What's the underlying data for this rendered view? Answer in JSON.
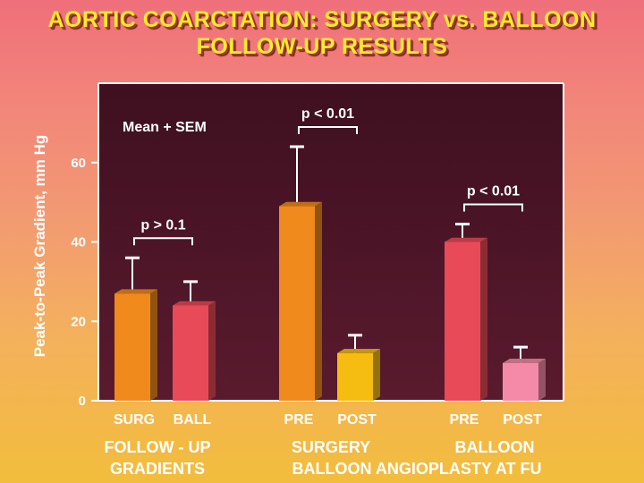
{
  "title_line1": "AORTIC COARCTATION: SURGERY vs. BALLOON",
  "title_line2": "FOLLOW-UP RESULTS",
  "chart_data": {
    "type": "bar",
    "ylabel": "Peak-to-Peak Gradient, mm Hg",
    "ylim": [
      0,
      80
    ],
    "yticks": [
      0,
      20,
      40,
      60
    ],
    "legend_note": "Mean + SEM",
    "bars": [
      {
        "label": "SURG",
        "value": 27,
        "sem": 9,
        "color": "#f08a1c"
      },
      {
        "label": "BALL",
        "value": 24,
        "sem": 6,
        "color": "#e84a58"
      },
      {
        "label": "PRE",
        "value": 49,
        "sem": 15,
        "color": "#f08a1c"
      },
      {
        "label": "POST",
        "value": 12,
        "sem": 4.5,
        "color": "#f5bd12"
      },
      {
        "label": "PRE",
        "value": 40,
        "sem": 4.5,
        "color": "#e84a58"
      },
      {
        "label": "POST",
        "value": 9.5,
        "sem": 4,
        "color": "#f58aa8"
      }
    ],
    "groups": [
      {
        "line1": "FOLLOW - UP",
        "line2": "GRADIENTS"
      },
      {
        "line1": "SURGERY",
        "line2": ""
      },
      {
        "line1": "BALLOON",
        "line2": ""
      }
    ],
    "group_footer": "BALLOON ANGIOPLASTY  AT FU",
    "annotations": [
      {
        "text": "p > 0.1",
        "from_bar": 0,
        "to_bar": 1
      },
      {
        "text": "p < 0.01",
        "from_bar": 2,
        "to_bar": 3
      },
      {
        "text": "p < 0.01",
        "from_bar": 4,
        "to_bar": 5
      }
    ]
  }
}
